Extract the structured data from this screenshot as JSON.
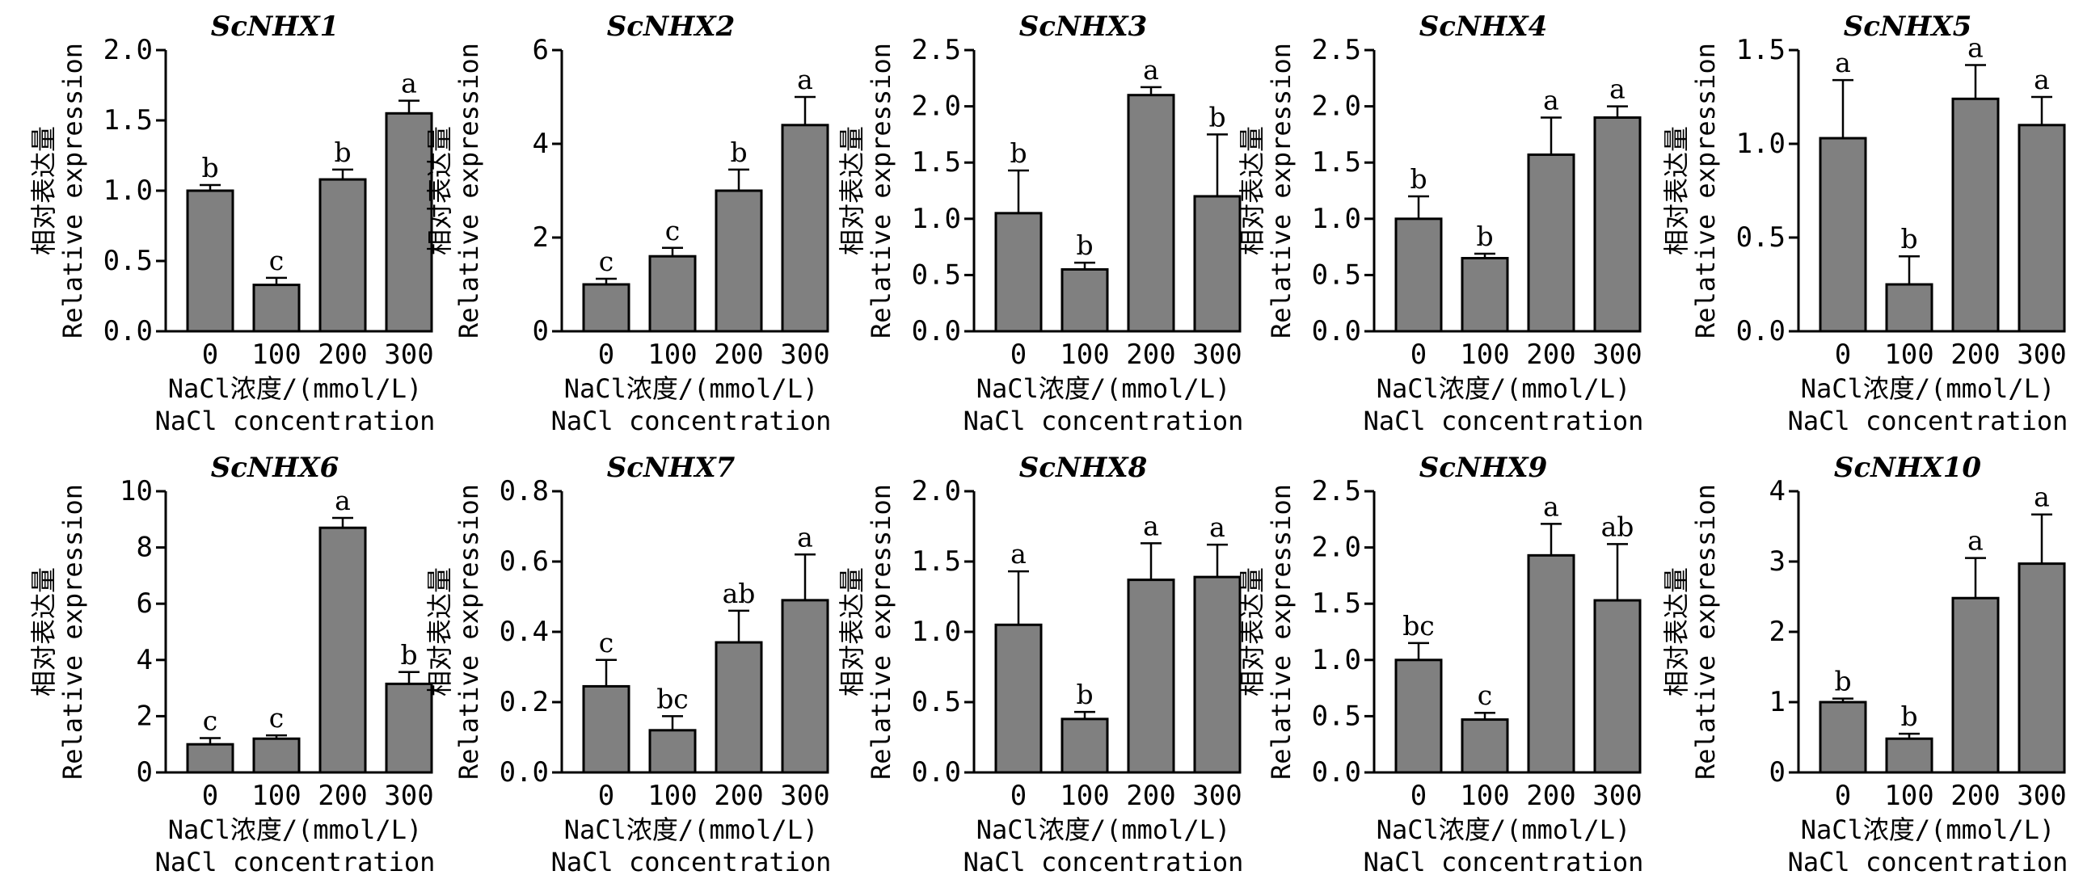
{
  "figure": {
    "bar_color": "#808080",
    "axis_color": "#000000"
  },
  "chart_data": [
    {
      "type": "bar",
      "title": "ScNHX1",
      "categories": [
        "0",
        "100",
        "200",
        "300"
      ],
      "values": [
        1.0,
        0.33,
        1.08,
        1.55
      ],
      "errors": [
        0.04,
        0.05,
        0.07,
        0.09
      ],
      "significance": [
        "b",
        "c",
        "b",
        "a"
      ],
      "ylim": [
        0,
        2.0
      ],
      "yticks": [
        "0.0",
        "0.5",
        "1.0",
        "1.5",
        "2.0"
      ],
      "ylabel": [
        "相对表达量",
        "Relative expression"
      ],
      "xlabel": [
        "NaCl浓度/(mmol/L)",
        "NaCl concentration"
      ]
    },
    {
      "type": "bar",
      "title": "ScNHX2",
      "categories": [
        "0",
        "100",
        "200",
        "300"
      ],
      "values": [
        1.0,
        1.6,
        3.0,
        4.4
      ],
      "errors": [
        0.12,
        0.18,
        0.45,
        0.6
      ],
      "significance": [
        "c",
        "c",
        "b",
        "a"
      ],
      "ylim": [
        0,
        6
      ],
      "yticks": [
        "0",
        "2",
        "4",
        "6"
      ],
      "ylabel": [
        "相对表达量",
        "Relative expression"
      ],
      "xlabel": [
        "NaCl浓度/(mmol/L)",
        "NaCl concentration"
      ]
    },
    {
      "type": "bar",
      "title": "ScNHX3",
      "categories": [
        "0",
        "100",
        "200",
        "300"
      ],
      "values": [
        1.05,
        0.55,
        2.1,
        1.2
      ],
      "errors": [
        0.38,
        0.06,
        0.07,
        0.55
      ],
      "significance": [
        "b",
        "b",
        "a",
        "b"
      ],
      "ylim": [
        0,
        2.5
      ],
      "yticks": [
        "0.0",
        "0.5",
        "1.0",
        "1.5",
        "2.0",
        "2.5"
      ],
      "ylabel": [
        "相对表达量",
        "Relative expression"
      ],
      "xlabel": [
        "NaCl浓度/(mmol/L)",
        "NaCl concentration"
      ]
    },
    {
      "type": "bar",
      "title": "ScNHX4",
      "categories": [
        "0",
        "100",
        "200",
        "300"
      ],
      "values": [
        1.0,
        0.65,
        1.57,
        1.9
      ],
      "errors": [
        0.2,
        0.04,
        0.33,
        0.1
      ],
      "significance": [
        "b",
        "b",
        "a",
        "a"
      ],
      "ylim": [
        0,
        2.5
      ],
      "yticks": [
        "0.0",
        "0.5",
        "1.0",
        "1.5",
        "2.0",
        "2.5"
      ],
      "ylabel": [
        "相对表达量",
        "Relative expression"
      ],
      "xlabel": [
        "NaCl浓度/(mmol/L)",
        "NaCl concentration"
      ]
    },
    {
      "type": "bar",
      "title": "ScNHX5",
      "categories": [
        "0",
        "100",
        "200",
        "300"
      ],
      "values": [
        1.03,
        0.25,
        1.24,
        1.1
      ],
      "errors": [
        0.31,
        0.15,
        0.18,
        0.15
      ],
      "significance": [
        "a",
        "b",
        "a",
        "a"
      ],
      "ylim": [
        0,
        1.5
      ],
      "yticks": [
        "0.0",
        "0.5",
        "1.0",
        "1.5"
      ],
      "ylabel": [
        "相对表达量",
        "Relative expression"
      ],
      "xlabel": [
        "NaCl浓度/(mmol/L)",
        "NaCl concentration"
      ]
    },
    {
      "type": "bar",
      "title": "ScNHX6",
      "categories": [
        "0",
        "100",
        "200",
        "300"
      ],
      "values": [
        1.0,
        1.2,
        8.7,
        3.15
      ],
      "errors": [
        0.22,
        0.12,
        0.35,
        0.42
      ],
      "significance": [
        "c",
        "c",
        "a",
        "b"
      ],
      "ylim": [
        0,
        10
      ],
      "yticks": [
        "0",
        "2",
        "4",
        "6",
        "8",
        "10"
      ],
      "ylabel": [
        "相对表达量",
        "Relative expression"
      ],
      "xlabel": [
        "NaCl浓度/(mmol/L)",
        "NaCl concentration"
      ]
    },
    {
      "type": "bar",
      "title": "ScNHX7",
      "categories": [
        "0",
        "100",
        "200",
        "300"
      ],
      "values": [
        0.245,
        0.12,
        0.37,
        0.49
      ],
      "errors": [
        0.075,
        0.04,
        0.09,
        0.13
      ],
      "significance": [
        "c",
        "bc",
        "ab",
        "a"
      ],
      "ylim": [
        0,
        0.8
      ],
      "yticks": [
        "0.0",
        "0.2",
        "0.4",
        "0.6",
        "0.8"
      ],
      "ylabel": [
        "相对表达量",
        "Relative expression"
      ],
      "xlabel": [
        "NaCl浓度/(mmol/L)",
        "NaCl concentration"
      ]
    },
    {
      "type": "bar",
      "title": "ScNHX8",
      "categories": [
        "0",
        "100",
        "200",
        "300"
      ],
      "values": [
        1.05,
        0.38,
        1.37,
        1.39
      ],
      "errors": [
        0.38,
        0.05,
        0.26,
        0.23
      ],
      "significance": [
        "a",
        "b",
        "a",
        "a"
      ],
      "ylim": [
        0,
        2.0
      ],
      "yticks": [
        "0.0",
        "0.5",
        "1.0",
        "1.5",
        "2.0"
      ],
      "ylabel": [
        "相对表达量",
        "Relative expression"
      ],
      "xlabel": [
        "NaCl浓度/(mmol/L)",
        "NaCl concentration"
      ]
    },
    {
      "type": "bar",
      "title": "ScNHX9",
      "categories": [
        "0",
        "100",
        "200",
        "300"
      ],
      "values": [
        1.0,
        0.47,
        1.93,
        1.53
      ],
      "errors": [
        0.15,
        0.06,
        0.28,
        0.5
      ],
      "significance": [
        "bc",
        "c",
        "a",
        "ab"
      ],
      "ylim": [
        0,
        2.5
      ],
      "yticks": [
        "0.0",
        "0.5",
        "1.0",
        "1.5",
        "2.0",
        "2.5"
      ],
      "ylabel": [
        "相对表达量",
        "Relative expression"
      ],
      "xlabel": [
        "NaCl浓度/(mmol/L)",
        "NaCl concentration"
      ]
    },
    {
      "type": "bar",
      "title": "ScNHX10",
      "categories": [
        "0",
        "100",
        "200",
        "300"
      ],
      "values": [
        1.0,
        0.48,
        2.48,
        2.97
      ],
      "errors": [
        0.05,
        0.07,
        0.57,
        0.7
      ],
      "significance": [
        "b",
        "b",
        "a",
        "a"
      ],
      "ylim": [
        0,
        4
      ],
      "yticks": [
        "0",
        "1",
        "2",
        "3",
        "4"
      ],
      "ylabel": [
        "相对表达量",
        "Relative expression"
      ],
      "xlabel": [
        "NaCl浓度/(mmol/L)",
        "NaCl concentration"
      ]
    }
  ]
}
